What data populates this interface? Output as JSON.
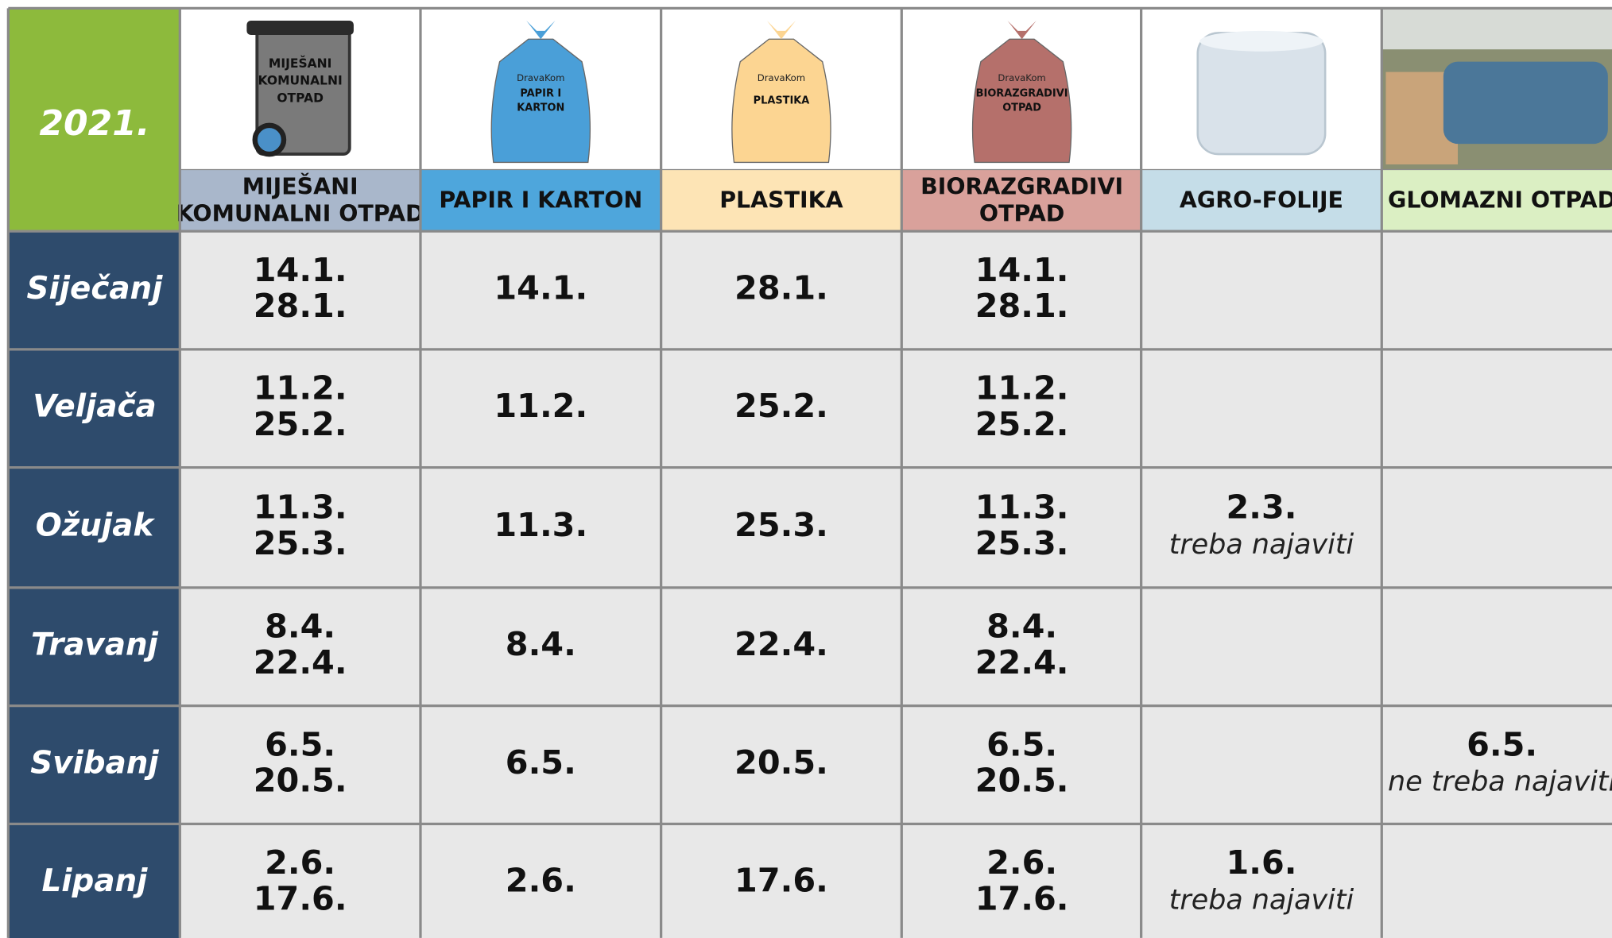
{
  "header": {
    "year": "2021."
  },
  "columns": [
    {
      "label_lines": [
        "MIJEŠANI",
        "KOMUNALNI OTPAD"
      ],
      "icon_lines": [
        "MIJEŠANI",
        "KOMUNALNI",
        "OTPAD"
      ]
    },
    {
      "label_lines": [
        "PAPIR I KARTON"
      ],
      "brand": "DravaKom",
      "icon_lines": [
        "PAPIR I",
        "KARTON"
      ]
    },
    {
      "label_lines": [
        "PLASTIKA"
      ],
      "brand": "DravaKom",
      "icon_lines": [
        "PLASTIKA"
      ]
    },
    {
      "label_lines": [
        "BIORAZGRADIVI",
        "OTPAD"
      ],
      "brand": "DravaKom",
      "icon_lines": [
        "BIORAZGRADIVI",
        "OTPAD"
      ]
    },
    {
      "label_lines": [
        "AGRO-FOLIJE"
      ]
    },
    {
      "label_lines": [
        "GLOMAZNI OTPAD"
      ]
    }
  ],
  "rows": [
    {
      "month": "Siječanj",
      "cells": [
        {
          "dates": [
            "14.1.",
            "28.1."
          ]
        },
        {
          "dates": [
            "14.1."
          ]
        },
        {
          "dates": [
            "28.1."
          ]
        },
        {
          "dates": [
            "14.1.",
            "28.1."
          ]
        },
        {
          "dates": []
        },
        {
          "dates": []
        }
      ]
    },
    {
      "month": "Veljača",
      "cells": [
        {
          "dates": [
            "11.2.",
            "25.2."
          ]
        },
        {
          "dates": [
            "11.2."
          ]
        },
        {
          "dates": [
            "25.2."
          ]
        },
        {
          "dates": [
            "11.2.",
            "25.2."
          ]
        },
        {
          "dates": []
        },
        {
          "dates": []
        }
      ]
    },
    {
      "month": "Ožujak",
      "cells": [
        {
          "dates": [
            "11.3.",
            "25.3."
          ]
        },
        {
          "dates": [
            "11.3."
          ]
        },
        {
          "dates": [
            "25.3."
          ]
        },
        {
          "dates": [
            "11.3.",
            "25.3."
          ]
        },
        {
          "dates": [
            "2.3."
          ],
          "note": "treba najaviti"
        },
        {
          "dates": []
        }
      ]
    },
    {
      "month": "Travanj",
      "cells": [
        {
          "dates": [
            "8.4.",
            "22.4."
          ]
        },
        {
          "dates": [
            "8.4."
          ]
        },
        {
          "dates": [
            "22.4."
          ]
        },
        {
          "dates": [
            "8.4.",
            "22.4."
          ]
        },
        {
          "dates": []
        },
        {
          "dates": []
        }
      ]
    },
    {
      "month": "Svibanj",
      "cells": [
        {
          "dates": [
            "6.5.",
            "20.5."
          ]
        },
        {
          "dates": [
            "6.5."
          ]
        },
        {
          "dates": [
            "20.5."
          ]
        },
        {
          "dates": [
            "6.5.",
            "20.5."
          ]
        },
        {
          "dates": []
        },
        {
          "dates": [
            "6.5."
          ],
          "note": "ne treba najaviti"
        }
      ]
    },
    {
      "month": "Lipanj",
      "cells": [
        {
          "dates": [
            "2.6.",
            "17.6."
          ]
        },
        {
          "dates": [
            "2.6."
          ]
        },
        {
          "dates": [
            "17.6."
          ]
        },
        {
          "dates": [
            "2.6.",
            "17.6."
          ]
        },
        {
          "dates": [
            "1.6."
          ],
          "note": "treba najaviti"
        },
        {
          "dates": []
        }
      ]
    }
  ]
}
